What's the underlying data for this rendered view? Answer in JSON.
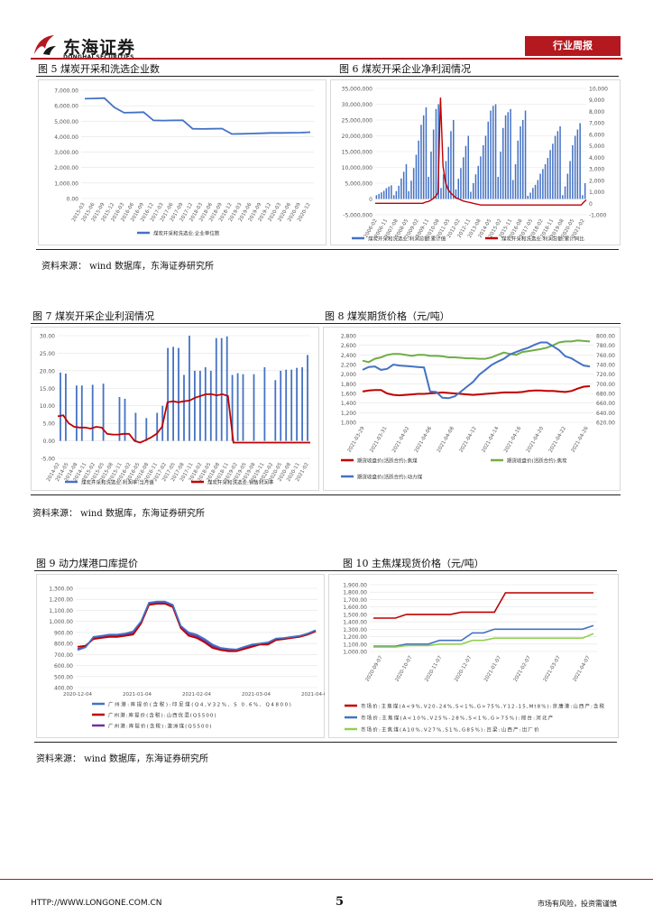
{
  "header": {
    "logo_cn": "东海证券",
    "logo_en": "DONGHAI SECURITIES",
    "badge": "行业周报"
  },
  "figures": {
    "fig5": {
      "title": "图 5   煤炭开采和洗选企业数",
      "chart_data": {
        "type": "line",
        "categories": [
          "2015-03",
          "2015-06",
          "2015-09",
          "2015-12",
          "2016-03",
          "2016-06",
          "2016-09",
          "2016-12",
          "2017-03",
          "2017-06",
          "2017-09",
          "2017-12",
          "2018-03",
          "2018-06",
          "2018-09",
          "2018-12",
          "2019-03",
          "2019-06",
          "2019-09",
          "2019-12",
          "2020-03",
          "2020-06",
          "2020-09",
          "2020-12"
        ],
        "y_ticks": [
          "7,000.00",
          "6,000.00",
          "5,000.00",
          "4,000.00",
          "3,000.00",
          "2,000.00",
          "1,000.00",
          "0.00"
        ],
        "ylim": [
          0,
          7000
        ],
        "series": [
          {
            "name": "煤炭开采和洗选业:企业单位数",
            "color": "#4472c4",
            "values": [
              6450,
              6470,
              6490,
              5900,
              5550,
              5560,
              5580,
              5050,
              5040,
              5050,
              5060,
              4510,
              4500,
              4510,
              4520,
              4170,
              4180,
              4200,
              4220,
              4240,
              4240,
              4250,
              4260,
              4290
            ]
          }
        ]
      }
    },
    "fig6": {
      "title": "图 6   煤炭开采企业净利润情况",
      "chart_data": {
        "type": "bar",
        "y_left_ticks": [
          "35,000,000",
          "30,000,000",
          "25,000,000",
          "20,000,000",
          "15,000,000",
          "10,000,000",
          "5,000,000",
          "0",
          "-5,000,000"
        ],
        "y_right_ticks": [
          "10,000",
          "9,000",
          "8,000",
          "7,000",
          "6,000",
          "5,000",
          "4,000",
          "3,000",
          "2,000",
          "1,000",
          "0",
          "-1,000"
        ],
        "ylim_left": [
          -5000000,
          35000000
        ],
        "ylim_right": [
          -1000,
          10000
        ],
        "x_ticks": [
          "2006-02",
          "2006-11",
          "2007-08",
          "2008-05",
          "2009-02",
          "2009-11",
          "2010-08",
          "2011-05",
          "2012-02",
          "2012-11",
          "2013-08",
          "2014-05",
          "2015-02",
          "2015-11",
          "2016-08",
          "2017-05",
          "2018-02",
          "2018-11",
          "2019-08",
          "2020-05",
          "2021-02"
        ],
        "series": [
          {
            "name": "煤炭开采和洗选业:利润总额:累计值",
            "color": "#4472c4",
            "values": [
              1200000,
              1600000,
              2100000,
              2600000,
              3400000,
              3900000,
              4300000,
              1200000,
              2500000,
              4200000,
              6500000,
              8600000,
              11000000,
              2500000,
              5800000,
              9800000,
              14000000,
              18500000,
              23500000,
              26500000,
              29000000,
              7000000,
              15000000,
              22000000,
              28500000,
              30000000,
              3500000,
              7800000,
              12000000,
              16500000,
              21500000,
              25000000,
              3000000,
              6400000,
              9800000,
              13200000,
              16800000,
              20000000,
              2300000,
              5000000,
              7800000,
              10500000,
              13500000,
              17000000,
              20000000,
              24500000,
              28000000,
              29500000,
              30000000,
              7000000,
              15000000,
              22500000,
              26500000,
              27500000,
              28500000,
              6000000,
              11000000,
              18500000,
              23000000,
              25000000,
              28000000,
              1000000,
              2000000,
              3500000,
              4500000,
              6000000,
              8000000,
              9500000,
              11000000,
              13000000,
              15500000,
              17500000,
              20000000,
              21500000,
              23000000,
              1200000,
              4000000,
              8000000,
              12000000,
              17000000,
              20000000,
              22000000,
              24000000,
              1200000,
              5000000
            ]
          },
          {
            "name": "煤炭开采和洗选业:利润总额:累计同比",
            "color": "#c00000",
            "values": [
              0,
              0,
              0,
              0,
              0,
              0,
              0,
              0,
              0,
              0,
              0,
              0,
              0,
              0,
              0,
              0,
              0,
              0,
              0,
              0,
              100,
              150,
              250,
              400,
              600,
              900,
              9200,
              3200,
              1800,
              1200,
              900,
              700,
              500,
              400,
              300,
              200,
              150,
              100,
              50,
              0,
              -50,
              -100,
              -150,
              -150,
              -150,
              -150,
              -150,
              -150,
              -150,
              -150,
              -150,
              -150,
              -150,
              -150,
              -150,
              -150,
              -150,
              -150,
              -150,
              -150,
              -150,
              -150,
              -150,
              -150,
              -150,
              -150,
              -150,
              -150,
              -150,
              -150,
              -150,
              -150,
              -150,
              -150,
              -150,
              -150,
              -150,
              -150,
              -150,
              -150,
              -150,
              -150,
              -150,
              100,
              300
            ]
          }
        ]
      }
    },
    "fig7": {
      "title": "图 7   煤炭开采企业利润情况",
      "chart_data": {
        "type": "bar",
        "y_ticks": [
          "30.00",
          "25.00",
          "20.00",
          "15.00",
          "10.00",
          "5.00",
          "0.00",
          "-5.00"
        ],
        "ylim": [
          -5,
          30
        ],
        "x_ticks": [
          "2014-02",
          "2014-05",
          "2014-08",
          "2014-11",
          "2015-02",
          "2015-05",
          "2015-08",
          "2015-11",
          "2016-02",
          "2016-05",
          "2016-08",
          "2016-11",
          "2017-02",
          "2017-05",
          "2017-08",
          "2017-11",
          "2018-02",
          "2018-05",
          "2018-08",
          "2018-11",
          "2019-02",
          "2019-05",
          "2019-08",
          "2019-11",
          "2020-02",
          "2020-05",
          "2020-08",
          "2020-11",
          "2021-02"
        ],
        "series": [
          {
            "name": "煤炭开采和洗选业:利润率:当月值",
            "color": "#4472c4",
            "values": [
              19.5,
              19.2,
              0,
              15.8,
              15.8,
              0,
              16.0,
              0,
              16.3,
              0,
              0,
              12.5,
              12.0,
              0,
              8.0,
              0,
              6.5,
              0,
              8.0,
              10.0,
              26.5,
              26.8,
              26.5,
              18.8,
              30.0,
              20.0,
              20.0,
              21.0,
              20.0,
              29.3,
              29.3,
              29.8,
              18.8,
              19.3,
              19.0,
              0,
              19.0,
              0,
              21.0,
              0,
              17.3,
              20.0,
              20.3,
              20.3,
              20.8,
              21.0,
              24.5
            ]
          },
          {
            "name": "煤炭开采和洗选业:销售利润率",
            "color": "#c00000",
            "values": [
              7.0,
              7.3,
              5.0,
              4.0,
              3.8,
              3.8,
              3.5,
              4.0,
              3.8,
              2.0,
              1.8,
              1.8,
              2.0,
              2.0,
              0.0,
              -0.5,
              0.2,
              1.0,
              2.0,
              4.0,
              11.0,
              11.3,
              11.0,
              11.3,
              11.5,
              12.3,
              12.8,
              13.3,
              13.3,
              13.0,
              13.3,
              12.8,
              -0.5,
              -0.5,
              -0.5,
              -0.5,
              -0.5,
              -0.5,
              -0.5,
              -0.5,
              -0.5,
              -0.5,
              -0.5,
              -0.5,
              -0.5,
              -0.5,
              -0.5
            ]
          }
        ]
      }
    },
    "fig8": {
      "title": "图 8   煤炭期货价格（元/吨）",
      "chart_data": {
        "type": "line",
        "y_left_ticks": [
          "2,800",
          "2,600",
          "2,400",
          "2,200",
          "2,000",
          "1,800",
          "1,600",
          "1,400",
          "1,200",
          "1,000"
        ],
        "y_right_ticks": [
          "800.00",
          "780.00",
          "760.00",
          "740.00",
          "720.00",
          "700.00",
          "680.00",
          "660.00",
          "640.00",
          "620.00"
        ],
        "ylim_left": [
          1000,
          2800
        ],
        "ylim_right": [
          620,
          800
        ],
        "x_ticks": [
          "2021-03-29",
          "2021-03-31",
          "2021-04-02",
          "2021-04-06",
          "2021-04-08",
          "2021-04-12",
          "2021-04-14",
          "2021-04-16",
          "2021-04-20",
          "2021-04-22",
          "2021-04-26"
        ],
        "series": [
          {
            "name": "期货收盘价(活跃合约):焦煤",
            "color": "#c00000",
            "axis": "left",
            "values": [
              1640,
              1660,
              1670,
              1670,
              1600,
              1570,
              1560,
              1570,
              1580,
              1590,
              1590,
              1600,
              1610,
              1620,
              1610,
              1600,
              1590,
              1580,
              1570,
              1580,
              1590,
              1600,
              1610,
              1620,
              1620,
              1620,
              1630,
              1650,
              1660,
              1660,
              1650,
              1650,
              1640,
              1630,
              1650,
              1700,
              1740,
              1750
            ]
          },
          {
            "name": "期货收盘价(活跃合约):焦炭",
            "color": "#70ad47",
            "axis": "right",
            "values": [
              748,
              745,
              752,
              755,
              760,
              762,
              762,
              760,
              758,
              760,
              760,
              758,
              758,
              757,
              755,
              755,
              754,
              753,
              753,
              752,
              752,
              755,
              760,
              765,
              762,
              760,
              766,
              768,
              770,
              772,
              775,
              780,
              786,
              788,
              788,
              790,
              789,
              788
            ]
          },
          {
            "name": "期货收盘价(活跃合约):动力煤",
            "color": "#4472c4",
            "axis": "right",
            "values": [
              729,
              735,
              736,
              729,
              731,
              740,
              738,
              737,
              736,
              735,
              734,
              684,
              683,
              671,
              670,
              674,
              684,
              694,
              704,
              719,
              729,
              739,
              746,
              752,
              761,
              766,
              771,
              775,
              781,
              786,
              786,
              778,
              770,
              757,
              753,
              745,
              738,
              736
            ]
          }
        ]
      }
    },
    "fig9": {
      "title": "图 9   动力煤港口库提价",
      "chart_data": {
        "type": "line",
        "y_ticks": [
          "1,300.00",
          "1,200.00",
          "1,100.00",
          "1,000.00",
          "900.00",
          "800.00",
          "700.00",
          "600.00",
          "500.00",
          "400.00"
        ],
        "ylim": [
          400,
          1300
        ],
        "x_ticks": [
          "2020-12-04",
          "2021-01-04",
          "2021-02-04",
          "2021-03-04",
          "2021-04-04"
        ],
        "series": [
          {
            "name": "广州港:库提价(含税):印尼煤(Q4,V32%, S 0.6%, Q4800)",
            "color": "#4472c4",
            "values": [
              740,
              765,
              860,
              870,
              880,
              880,
              890,
              910,
              1000,
              1170,
              1180,
              1180,
              1150,
              960,
              900,
              880,
              840,
              790,
              760,
              750,
              745,
              770,
              790,
              800,
              810,
              845,
              850,
              860,
              870,
              890,
              920
            ]
          },
          {
            "name": "广州港:库提价(含税):山西优混(Q5500)",
            "color": "#c00000",
            "values": [
              770,
              780,
              840,
              850,
              860,
              860,
              870,
              880,
              980,
              1150,
              1160,
              1160,
              1130,
              940,
              870,
              850,
              810,
              760,
              740,
              730,
              730,
              750,
              770,
              790,
              790,
              830,
              840,
              850,
              860,
              880,
              910
            ]
          },
          {
            "name": "广州港:库提价(含税):澳洲煤(Q5500)",
            "color": "#7030a0",
            "values": [
              750,
              770,
              850,
              860,
              870,
              870,
              880,
              895,
              990,
              1160,
              1170,
              1170,
              1140,
              950,
              885,
              865,
              825,
              775,
              750,
              740,
              738,
              760,
              780,
              795,
              800,
              838,
              845,
              855,
              865,
              885,
              915
            ]
          }
        ]
      }
    },
    "fig10": {
      "title": "图 10   主焦煤现货价格（元/吨）",
      "chart_data": {
        "type": "line",
        "y_ticks": [
          "1,900.00",
          "1,800.00",
          "1,700.00",
          "1,600.00",
          "1,500.00",
          "1,400.00",
          "1,300.00",
          "1,200.00",
          "1,100.00",
          "1,000.00"
        ],
        "ylim": [
          1000,
          1900
        ],
        "x_ticks": [
          "2020-09-07",
          "2020-10-07",
          "2020-11-07",
          "2020-12-07",
          "2021-01-07",
          "2021-02-07",
          "2021-03-07",
          "2021-04-07"
        ],
        "series": [
          {
            "name": "市场价:主焦煤(A<9%,V20-24%,S<1%,G>75%,Y12-15,Mt8%):京唐港:山西产:含税",
            "color": "#c00000",
            "values": [
              1450,
              1450,
              1450,
              1500,
              1500,
              1500,
              1500,
              1500,
              1530,
              1530,
              1530,
              1530,
              1790,
              1790,
              1790,
              1790,
              1790,
              1790,
              1790,
              1790,
              1790
            ]
          },
          {
            "name": "市场价:主焦煤(A<10%,V25%-28%,S<1%,G>75%):邢台:河北产",
            "color": "#4472c4",
            "values": [
              1070,
              1070,
              1070,
              1100,
              1100,
              1100,
              1150,
              1150,
              1150,
              1250,
              1250,
              1300,
              1300,
              1300,
              1300,
              1300,
              1300,
              1300,
              1300,
              1300,
              1350
            ]
          },
          {
            "name": "市场价:主焦煤(A10%,V27%,S1%,G85%):吕梁:山西产:出厂价",
            "color": "#92d050",
            "values": [
              1060,
              1060,
              1060,
              1080,
              1080,
              1080,
              1100,
              1100,
              1100,
              1150,
              1150,
              1180,
              1180,
              1180,
              1180,
              1180,
              1180,
              1180,
              1180,
              1180,
              1240
            ]
          }
        ]
      }
    }
  },
  "sources": {
    "s1": "资料来源：  wind 数据库，东海证券研究所",
    "s2": "资料来源：  wind 数据库，东海证券研究所",
    "s3": "资料来源：  wind 数据库，东海证券研究所"
  },
  "footer": {
    "url": "HTTP://WWW.LONGONE.COM.CN",
    "page": "5",
    "note": "市场有风险，投资需谨慎"
  }
}
